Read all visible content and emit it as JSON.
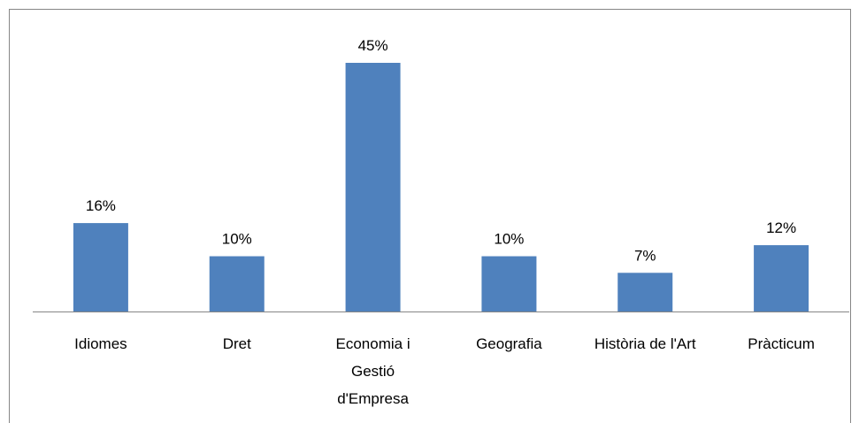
{
  "chart_data": {
    "type": "bar",
    "categories": [
      "Idiomes",
      "Dret",
      "Economia i Gestió d'Empresa",
      "Geografia",
      "Història de l'Art",
      "Pràcticum"
    ],
    "values": [
      16,
      10,
      45,
      10,
      7,
      12
    ],
    "value_labels": [
      "16%",
      "10%",
      "45%",
      "10%",
      "7%",
      "12%"
    ],
    "color": "#4f81bd"
  }
}
